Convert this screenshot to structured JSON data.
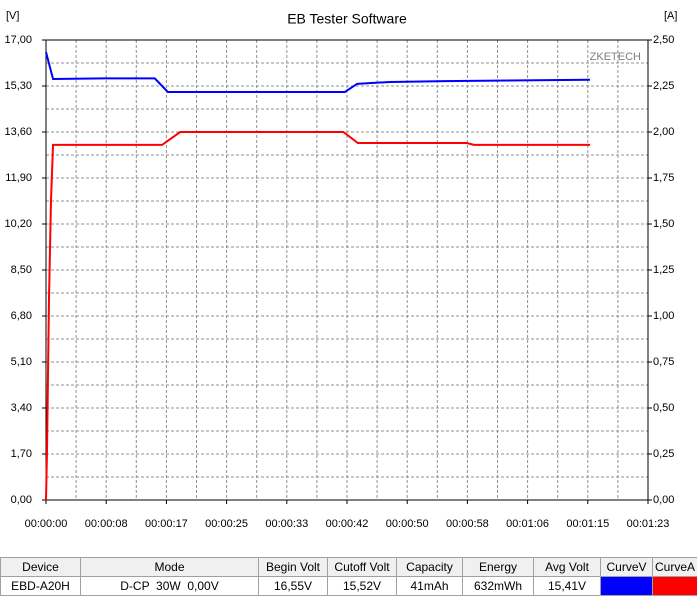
{
  "chart_data": {
    "type": "line",
    "title": "EB Tester Software",
    "y_label": "[V]",
    "y2_label": "[A]",
    "watermark": "ZKETECH",
    "xlim": [
      0,
      83
    ],
    "xticks": [
      {
        "value": 0,
        "label": "00:00:00"
      },
      {
        "value": 8.3,
        "label": "00:00:08"
      },
      {
        "value": 16.6,
        "label": "00:00:17"
      },
      {
        "value": 24.9,
        "label": "00:00:25"
      },
      {
        "value": 33.2,
        "label": "00:00:33"
      },
      {
        "value": 41.5,
        "label": "00:00:42"
      },
      {
        "value": 49.8,
        "label": "00:00:50"
      },
      {
        "value": 58.1,
        "label": "00:00:58"
      },
      {
        "value": 66.4,
        "label": "00:01:06"
      },
      {
        "value": 74.7,
        "label": "00:01:15"
      },
      {
        "value": 83,
        "label": "00:01:23"
      }
    ],
    "ylim": [
      0,
      17
    ],
    "yticks": [
      {
        "value": 0,
        "label": "0,00"
      },
      {
        "value": 1.7,
        "label": "1,70"
      },
      {
        "value": 3.4,
        "label": "3,40"
      },
      {
        "value": 5.1,
        "label": "5,10"
      },
      {
        "value": 6.8,
        "label": "6,80"
      },
      {
        "value": 8.5,
        "label": "8,50"
      },
      {
        "value": 10.2,
        "label": "10,20"
      },
      {
        "value": 11.9,
        "label": "11,90"
      },
      {
        "value": 13.6,
        "label": "13,60"
      },
      {
        "value": 15.3,
        "label": "15,30"
      },
      {
        "value": 17,
        "label": "17,00"
      }
    ],
    "y2lim": [
      0,
      2.5
    ],
    "y2ticks": [
      {
        "value": 0,
        "label": "0,00"
      },
      {
        "value": 0.25,
        "label": "0,25"
      },
      {
        "value": 0.5,
        "label": "0,50"
      },
      {
        "value": 0.75,
        "label": "0,75"
      },
      {
        "value": 1,
        "label": "1,00"
      },
      {
        "value": 1.25,
        "label": "1,25"
      },
      {
        "value": 1.5,
        "label": "1,50"
      },
      {
        "value": 1.75,
        "label": "1,75"
      },
      {
        "value": 2,
        "label": "2,00"
      },
      {
        "value": 2.25,
        "label": "2,25"
      },
      {
        "value": 2.5,
        "label": "2,50"
      }
    ],
    "grid": true,
    "series": [
      {
        "color": "#0000ff",
        "x": [
          0,
          0.97,
          8,
          15,
          16.8,
          41.2,
          42.9,
          47.4,
          55,
          75
        ],
        "values": [
          16.55,
          15.56,
          15.58,
          15.58,
          15.08,
          15.08,
          15.38,
          15.45,
          15.48,
          15.53
        ]
      },
      {
        "color": "#ff0000",
        "axis": "y2",
        "x": [
          0,
          0.14,
          0.41,
          0.69,
          0.97,
          16,
          18.5,
          41,
          43,
          58,
          59,
          75
        ],
        "values": [
          0,
          0.27,
          1.09,
          1.63,
          1.93,
          1.93,
          2.0,
          2.0,
          1.94,
          1.94,
          1.93,
          1.93
        ]
      }
    ]
  },
  "table": {
    "header": [
      "Device",
      "Mode",
      "Begin Volt",
      "Cutoff Volt",
      "Capacity",
      "Energy",
      "Avg Volt",
      "CurveV",
      "CurveA"
    ],
    "row": [
      "EBD-A20H",
      "D-CP  30W  0,00V",
      "16,55V",
      "15,52V",
      "41mAh",
      "632mWh",
      "15,41V"
    ]
  }
}
